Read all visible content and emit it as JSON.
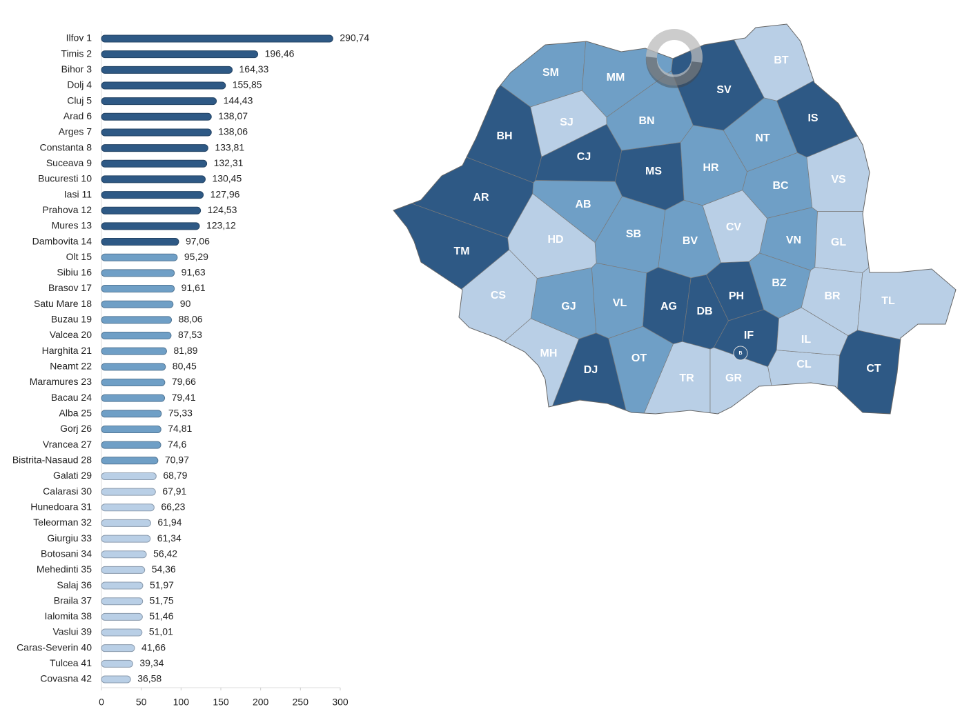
{
  "chart_data": {
    "type": "bar",
    "categories": [
      "Ilfov 1",
      "Timis 2",
      "Bihor 3",
      "Dolj 4",
      "Cluj 5",
      "Arad 6",
      "Arges 7",
      "Constanta 8",
      "Suceava 9",
      "Bucuresti 10",
      "Iasi 11",
      "Prahova 12",
      "Mures 13",
      "Dambovita 14",
      "Olt 15",
      "Sibiu 16",
      "Brasov 17",
      "Satu Mare 18",
      "Buzau 19",
      "Valcea 20",
      "Harghita 21",
      "Neamt 22",
      "Maramures 23",
      "Bacau 24",
      "Alba 25",
      "Gorj 26",
      "Vrancea 27",
      "Bistrita-Nasaud 28",
      "Galati 29",
      "Calarasi 30",
      "Hunedoara 31",
      "Teleorman 32",
      "Giurgiu 33",
      "Botosani 34",
      "Mehedinti 35",
      "Salaj 36",
      "Braila 37",
      "Ialomita 38",
      "Vaslui 39",
      "Caras-Severin 40",
      "Tulcea 41",
      "Covasna 42"
    ],
    "values": [
      290.74,
      196.46,
      164.33,
      155.85,
      144.43,
      138.07,
      138.06,
      133.81,
      132.31,
      130.45,
      127.96,
      124.53,
      123.12,
      97.06,
      95.29,
      91.63,
      91.61,
      90,
      88.06,
      87.53,
      81.89,
      80.45,
      79.66,
      79.41,
      75.33,
      74.81,
      74.6,
      70.97,
      68.79,
      67.91,
      66.23,
      61.94,
      61.34,
      56.42,
      54.36,
      51.97,
      51.75,
      51.46,
      51.01,
      41.66,
      39.34,
      36.58
    ],
    "value_labels": [
      "290,74",
      "196,46",
      "164,33",
      "155,85",
      "144,43",
      "138,07",
      "138,06",
      "133,81",
      "132,31",
      "130,45",
      "127,96",
      "124,53",
      "123,12",
      "97,06",
      "95,29",
      "91,63",
      "91,61",
      "90",
      "88,06",
      "87,53",
      "81,89",
      "80,45",
      "79,66",
      "79,41",
      "75,33",
      "74,81",
      "74,6",
      "70,97",
      "68,79",
      "67,91",
      "66,23",
      "61,94",
      "61,34",
      "56,42",
      "54,36",
      "51,97",
      "51,75",
      "51,46",
      "51,01",
      "41,66",
      "39,34",
      "36,58"
    ],
    "colors": [
      "#2e5985",
      "#2e5985",
      "#2e5985",
      "#2e5985",
      "#2e5985",
      "#2e5985",
      "#2e5985",
      "#2e5985",
      "#2e5985",
      "#2e5985",
      "#2e5985",
      "#2e5985",
      "#2e5985",
      "#2e5985",
      "#6f9fc6",
      "#6f9fc6",
      "#6f9fc6",
      "#6f9fc6",
      "#6f9fc6",
      "#6f9fc6",
      "#6f9fc6",
      "#6f9fc6",
      "#6f9fc6",
      "#6f9fc6",
      "#6f9fc6",
      "#6f9fc6",
      "#6f9fc6",
      "#6f9fc6",
      "#b9cfe6",
      "#b9cfe6",
      "#b9cfe6",
      "#b9cfe6",
      "#b9cfe6",
      "#b9cfe6",
      "#b9cfe6",
      "#b9cfe6",
      "#b9cfe6",
      "#b9cfe6",
      "#b9cfe6",
      "#b9cfe6",
      "#b9cfe6",
      "#b9cfe6"
    ],
    "xlim": [
      0,
      300
    ],
    "xticks": [
      0,
      50,
      100,
      150,
      200,
      250,
      300
    ]
  },
  "map": {
    "labels": [
      "IF",
      "TM",
      "BH",
      "DJ",
      "CJ",
      "AR",
      "AG",
      "CT",
      "SV",
      "B",
      "IS",
      "PH",
      "MS",
      "DB",
      "OT",
      "SB",
      "BV",
      "SM",
      "BZ",
      "VL",
      "HR",
      "NT",
      "MM",
      "BC",
      "AB",
      "GJ",
      "VN",
      "BN",
      "GL",
      "CL",
      "HD",
      "TR",
      "GR",
      "BT",
      "MH",
      "SJ",
      "BR",
      "IL",
      "VS",
      "CS",
      "TL",
      "CV"
    ]
  }
}
